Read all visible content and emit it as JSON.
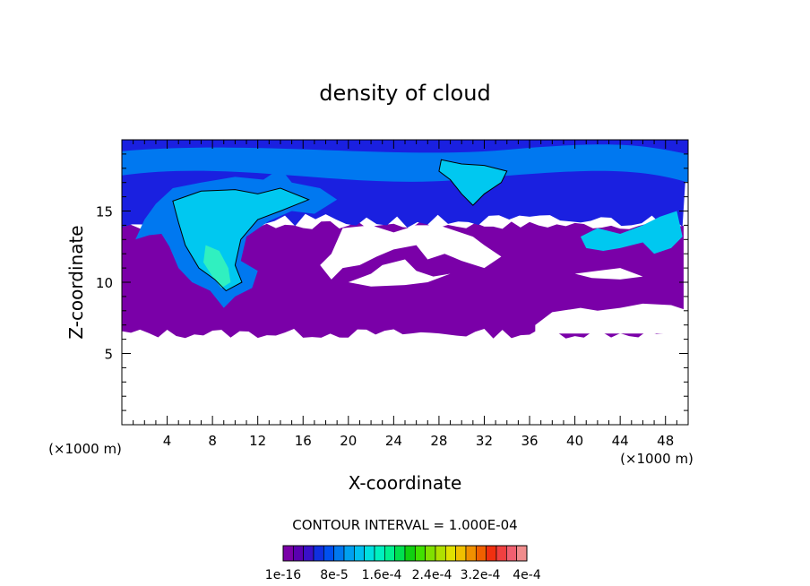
{
  "chart_data": {
    "type": "heatmap",
    "title": "density of cloud",
    "xlabel": "X-coordinate",
    "ylabel": "Z-coordinate",
    "x_unit_left": "(×1000 m)",
    "x_unit_right": "(×1000 m)",
    "xlim": [
      0,
      50
    ],
    "ylim": [
      0,
      20
    ],
    "x_ticks": [
      "4",
      "8",
      "12",
      "16",
      "20",
      "24",
      "28",
      "32",
      "36",
      "40",
      "44",
      "48"
    ],
    "x_tick_values": [
      4,
      8,
      12,
      16,
      20,
      24,
      28,
      32,
      36,
      40,
      44,
      48
    ],
    "y_ticks": [
      "5",
      "10",
      "15"
    ],
    "y_tick_values": [
      5,
      10,
      15
    ],
    "contour_interval_text": "CONTOUR INTERVAL = 1.000E-04",
    "colorbar": {
      "labels": [
        "1e-16",
        "8e-5",
        "1.6e-4",
        "2.4e-4",
        "3.2e-4",
        "4e-4"
      ],
      "colors": [
        "#7a00a8",
        "#5a00b0",
        "#3a10c8",
        "#1030e0",
        "#0050f0",
        "#0078f0",
        "#00a0f0",
        "#00c0f0",
        "#00e0e0",
        "#00f0c0",
        "#00f090",
        "#00e050",
        "#10d010",
        "#40e000",
        "#80e000",
        "#b0e000",
        "#e0e000",
        "#f0c000",
        "#f09000",
        "#f06000",
        "#f03010",
        "#f04040",
        "#f06070",
        "#f08c8c"
      ]
    },
    "field_levels": {
      "background": "#ffffff",
      "lowest": "#7a00a8",
      "low": "#1a20e0",
      "mid": "#0078f0",
      "high": "#00c8f0",
      "peak": "#30f0c0"
    }
  }
}
